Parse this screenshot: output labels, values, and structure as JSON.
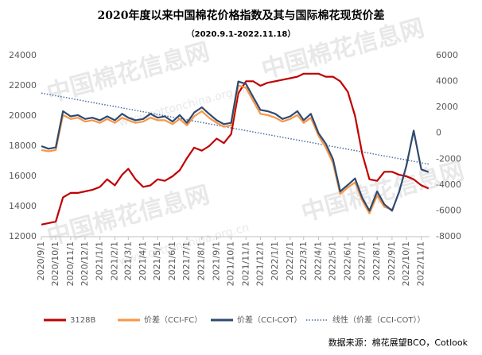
{
  "chart_data": {
    "type": "line",
    "title": "2020年度以来中国棉花价格指数及其与国际棉花现货价差",
    "subtitle": "（2020.9.1-2022.11.18）",
    "source": "数据来源：棉花展望BCO，Cotlook",
    "watermark": "中国棉花信息网",
    "watermark_url": "www.cottonchina.org.cn",
    "x": [
      "2020/9/1",
      "2020/9/16",
      "2020/10/1",
      "2020/10/16",
      "2020/11/1",
      "2020/11/16",
      "2020/12/1",
      "2020/12/16",
      "2021/1/1",
      "2021/1/16",
      "2021/2/1",
      "2021/2/16",
      "2021/3/1",
      "2021/3/16",
      "2021/4/1",
      "2021/4/16",
      "2021/5/1",
      "2021/5/16",
      "2021/6/1",
      "2021/6/16",
      "2021/7/1",
      "2021/7/16",
      "2021/8/1",
      "2021/8/16",
      "2021/9/1",
      "2021/9/16",
      "2021/10/1",
      "2021/10/16",
      "2021/11/1",
      "2021/11/16",
      "2021/12/1",
      "2021/12/16",
      "2022/1/1",
      "2022/1/16",
      "2022/2/1",
      "2022/2/16",
      "2022/3/1",
      "2022/3/16",
      "2022/4/1",
      "2022/4/16",
      "2022/5/1",
      "2022/5/16",
      "2022/6/1",
      "2022/6/16",
      "2022/7/1",
      "2022/7/16",
      "2022/8/1",
      "2022/8/16",
      "2022/9/1",
      "2022/9/16",
      "2022/10/1",
      "2022/10/16",
      "2022/11/1",
      "2022/11/16"
    ],
    "xlim": [
      "2020/9/1",
      "2022/11/18"
    ],
    "xticks": [
      "2020/9/1",
      "2020/10/1",
      "2020/11/1",
      "2020/12/1",
      "2021/1/1",
      "2021/2/1",
      "2021/3/1",
      "2021/4/1",
      "2021/5/1",
      "2021/6/1",
      "2021/7/1",
      "2021/8/1",
      "2021/9/1",
      "2021/10/1",
      "2021/11/1",
      "2021/12/1",
      "2022/1/1",
      "2022/2/1",
      "2022/3/1",
      "2022/4/1",
      "2022/5/1",
      "2022/6/1",
      "2022/7/1",
      "2022/8/1",
      "2022/9/1",
      "2022/10/1",
      "2022/11/1"
    ],
    "ylim": [
      12000,
      24000
    ],
    "yticks": [
      12000,
      14000,
      16000,
      18000,
      20000,
      22000,
      24000
    ],
    "y2lim": [
      -8000,
      6000
    ],
    "y2ticks": [
      -8000,
      -6000,
      -4000,
      -2000,
      0,
      2000,
      4000,
      6000
    ],
    "series": [
      {
        "name": "3128B",
        "color": "#c00000",
        "values": [
          12800,
          12900,
          13000,
          14600,
          14900,
          14900,
          15000,
          15100,
          15300,
          15800,
          15400,
          16100,
          16500,
          15800,
          15300,
          15400,
          15800,
          15700,
          16000,
          16400,
          17200,
          17900,
          17700,
          18000,
          18500,
          18200,
          18800,
          21500,
          22300,
          22300,
          22000,
          22200,
          22300,
          22400,
          22500,
          22600,
          22800,
          22800,
          22800,
          22600,
          22600,
          22300,
          21600,
          20000,
          17500,
          15800,
          15700,
          16300,
          16300,
          16100,
          16000,
          15800,
          15400,
          15200
        ]
      },
      {
        "name": "价差（CCI-FC）",
        "color": "#f79646",
        "axis": "y2",
        "values": [
          -1300,
          -1400,
          -1300,
          1400,
          1100,
          1200,
          900,
          1000,
          800,
          1100,
          800,
          1200,
          1000,
          800,
          900,
          1200,
          1000,
          1000,
          700,
          1100,
          600,
          1300,
          1700,
          1200,
          800,
          500,
          600,
          3700,
          3500,
          2500,
          1500,
          1400,
          1200,
          900,
          1100,
          1400,
          800,
          1200,
          -200,
          -1100,
          -2300,
          -4700,
          -4200,
          -3800,
          -5200,
          -6200,
          -4800,
          -5700,
          -5900,
          null,
          null,
          null,
          null,
          null
        ]
      },
      {
        "name": "价差（CCI-COT）",
        "color": "#2e4a70",
        "axis": "y2",
        "values": [
          -1000,
          -1200,
          -1100,
          1700,
          1300,
          1400,
          1100,
          1200,
          1000,
          1300,
          1000,
          1500,
          1200,
          1000,
          1100,
          1500,
          1200,
          1300,
          900,
          1400,
          800,
          1600,
          2000,
          1500,
          1000,
          700,
          800,
          4000,
          3800,
          2800,
          1800,
          1700,
          1500,
          1100,
          1300,
          1700,
          1000,
          1500,
          0,
          -800,
          -2000,
          -4500,
          -4000,
          -3500,
          -5000,
          -6000,
          -4500,
          -5500,
          -6000,
          -4500,
          -2500,
          200,
          -2800,
          -3000
        ]
      },
      {
        "name": "线性（价差（CCI-COT））",
        "color": "#4a6fa5",
        "axis": "y2",
        "dash": true,
        "x": [
          "2020/9/1",
          "2022/11/18"
        ],
        "values": [
          3100,
          -2400
        ]
      }
    ]
  }
}
